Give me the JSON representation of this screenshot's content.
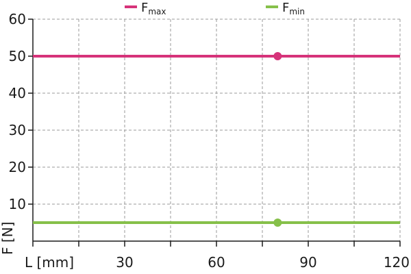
{
  "chart_data": {
    "type": "line",
    "xlabel": "L [mm]",
    "ylabel": "F [N]",
    "xlim": [
      0,
      120
    ],
    "ylim": [
      0,
      60
    ],
    "x_ticks": [
      30,
      60,
      90,
      120
    ],
    "y_ticks": [
      10,
      20,
      30,
      40,
      50,
      60
    ],
    "x_minor_step": 15,
    "grid": true,
    "legend_position": "top",
    "series": [
      {
        "name_main": "F",
        "name_sub": "max",
        "color": "#d6337a",
        "x": [
          0,
          120
        ],
        "y": [
          50,
          50
        ],
        "marker": {
          "x": 80,
          "y": 50
        }
      },
      {
        "name_main": "F",
        "name_sub": "min",
        "color": "#86c04a",
        "x": [
          0,
          120
        ],
        "y": [
          5,
          5
        ],
        "marker": {
          "x": 80,
          "y": 5
        }
      }
    ]
  }
}
